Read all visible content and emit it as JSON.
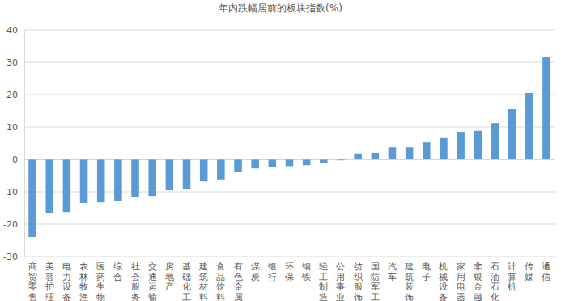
{
  "chart_data": {
    "type": "bar",
    "title": "年内跌幅居前的板块指数(%)",
    "categories": [
      "商贸零售",
      "美容护理",
      "电力设备",
      "农林牧渔",
      "医药生物",
      "综合",
      "社会服务",
      "交通运输",
      "房地产",
      "基础化工",
      "建筑材料",
      "食品饮料",
      "有色金属",
      "煤炭",
      "银行",
      "环保",
      "钢铁",
      "轻工制造",
      "公用事业",
      "纺织服饰",
      "国防军工",
      "汽车",
      "建筑装饰",
      "电子",
      "机械设备",
      "家用电器",
      "非银金融",
      "石油石化",
      "计算机",
      "传媒",
      "通信"
    ],
    "values": [
      -24,
      -16.5,
      -16.3,
      -13.5,
      -13.3,
      -13,
      -11.5,
      -11.3,
      -9.5,
      -9,
      -6.8,
      -6.2,
      -3.8,
      -2.8,
      -2.3,
      -2.1,
      -1.8,
      -1.1,
      -0.3,
      1.8,
      2,
      3.7,
      3.7,
      5.2,
      6.8,
      8.5,
      8.8,
      11.2,
      15.5,
      20.5,
      31.5
    ],
    "color": "#5b9bd5",
    "ylim": [
      -30,
      40
    ],
    "yticks": [
      -30,
      -20,
      -10,
      0,
      10,
      20,
      30,
      40
    ],
    "grid": true
  }
}
